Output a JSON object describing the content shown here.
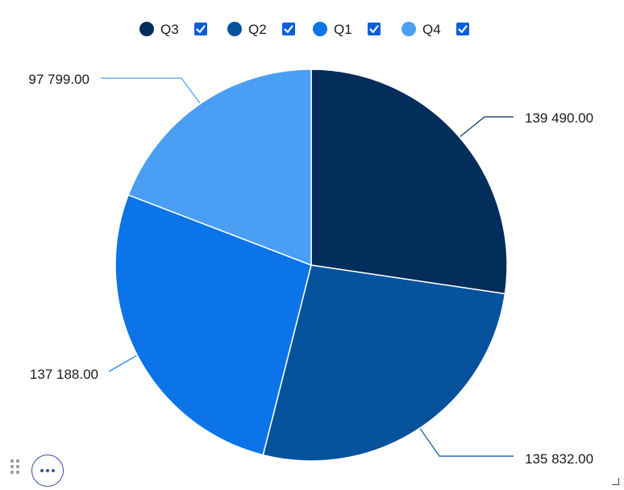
{
  "chart_data": {
    "type": "pie",
    "title": "",
    "legend_position": "top-center",
    "series": [
      {
        "name": "Q3",
        "value": 139490.0,
        "label": "139 490.00",
        "color": "#032d5a"
      },
      {
        "name": "Q2",
        "value": 135832.0,
        "label": "135 832.00",
        "color": "#07529d"
      },
      {
        "name": "Q1",
        "value": 137188.0,
        "label": "137 188.00",
        "color": "#0a74e8"
      },
      {
        "name": "Q4",
        "value": 97799.0,
        "label": "97 799.00",
        "color": "#4a9ff5"
      }
    ]
  },
  "legend": {
    "items": [
      {
        "label": "Q3",
        "color": "#032d5a",
        "checked": true
      },
      {
        "label": "Q2",
        "color": "#07529d",
        "checked": true
      },
      {
        "label": "Q1",
        "color": "#0a74e8",
        "checked": true
      },
      {
        "label": "Q4",
        "color": "#4a9ff5",
        "checked": true
      }
    ],
    "checkbox_color": "#0b5ed7"
  },
  "controls": {
    "more_icon": "ellipsis-icon",
    "drag_icon": "drag-handle-icon",
    "resize_icon": "resize-corner-icon",
    "accent": "#3a4ea3"
  }
}
